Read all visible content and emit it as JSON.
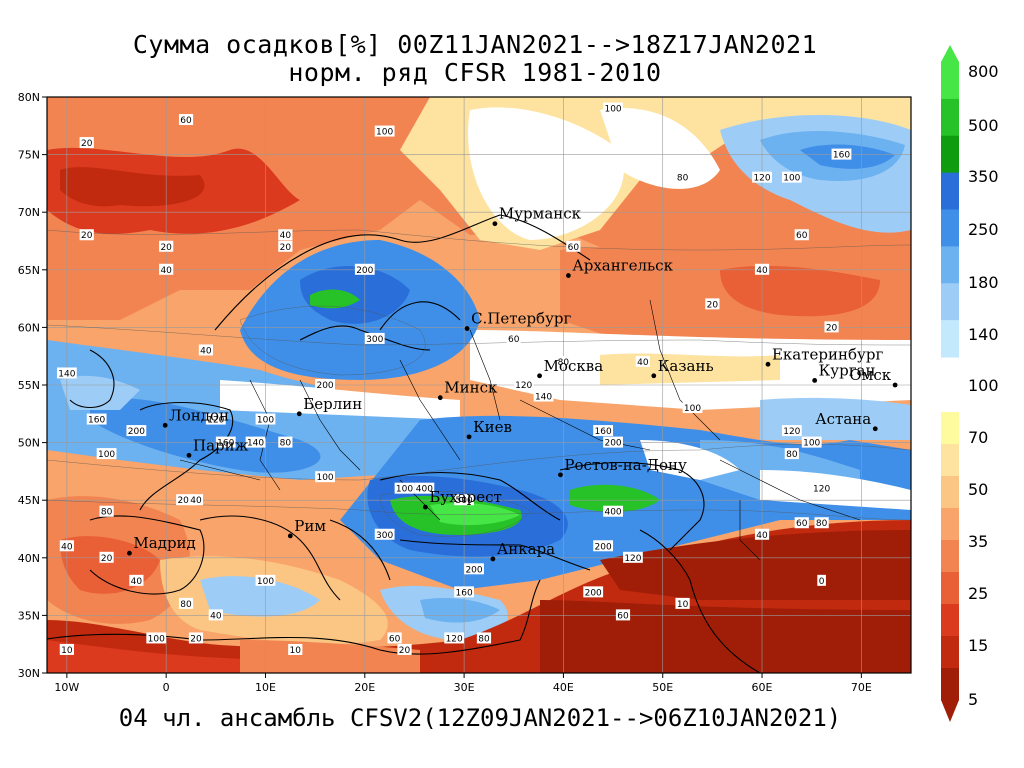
{
  "title_line1": "Сумма осадков[%] 00Z11JAN2021-->18Z17JAN2021",
  "title_line2": "норм. ряд CFSR 1981-2010",
  "caption": "04 чл. ансамбль CFSV2(12Z09JAN2021-->06Z10JAN2021)",
  "lon_ticks": [
    "10W",
    "0",
    "10E",
    "20E",
    "30E",
    "40E",
    "50E",
    "60E",
    "70E"
  ],
  "lat_ticks": [
    "80N",
    "75N",
    "70N",
    "65N",
    "60N",
    "55N",
    "50N",
    "45N",
    "40N",
    "35N",
    "30N"
  ],
  "map_extent": {
    "lon": [
      -12,
      75
    ],
    "lat": [
      30,
      80
    ]
  },
  "cities": [
    {
      "name": "Мурманск",
      "lon": 33.1,
      "lat": 69.0
    },
    {
      "name": "Архангельск",
      "lon": 40.5,
      "lat": 64.5
    },
    {
      "name": "С.Петербург",
      "lon": 30.3,
      "lat": 59.9
    },
    {
      "name": "Москва",
      "lon": 37.6,
      "lat": 55.8
    },
    {
      "name": "Казань",
      "lon": 49.1,
      "lat": 55.8
    },
    {
      "name": "Екатеринбург",
      "lon": 60.6,
      "lat": 56.8
    },
    {
      "name": "Курган",
      "lon": 65.3,
      "lat": 55.4
    },
    {
      "name": "Омск",
      "lon": 73.4,
      "lat": 55.0
    },
    {
      "name": "Астана",
      "lon": 71.4,
      "lat": 51.2
    },
    {
      "name": "Минск",
      "lon": 27.6,
      "lat": 53.9
    },
    {
      "name": "Киев",
      "lon": 30.5,
      "lat": 50.5
    },
    {
      "name": "Берлин",
      "lon": 13.4,
      "lat": 52.5
    },
    {
      "name": "Лондон",
      "lon": -0.1,
      "lat": 51.5
    },
    {
      "name": "Париж",
      "lon": 2.3,
      "lat": 48.9
    },
    {
      "name": "Рим",
      "lon": 12.5,
      "lat": 41.9
    },
    {
      "name": "Мадрид",
      "lon": -3.7,
      "lat": 40.4
    },
    {
      "name": "Бухарест",
      "lon": 26.1,
      "lat": 44.4
    },
    {
      "name": "Анкара",
      "lon": 32.9,
      "lat": 39.9
    },
    {
      "name": "Ростов-на-Дону",
      "lon": 39.7,
      "lat": 47.2
    }
  ],
  "contour_labels": [
    {
      "text": "20",
      "lon": -8,
      "lat": 76
    },
    {
      "text": "60",
      "lon": 2,
      "lat": 78
    },
    {
      "text": "100",
      "lon": 22,
      "lat": 77
    },
    {
      "text": "100",
      "lon": 45,
      "lat": 79
    },
    {
      "text": "80",
      "lon": 52,
      "lat": 73
    },
    {
      "text": "160",
      "lon": 68,
      "lat": 75
    },
    {
      "text": "120",
      "lon": 60,
      "lat": 73
    },
    {
      "text": "100",
      "lon": 63,
      "lat": 73
    },
    {
      "text": "60",
      "lon": 64,
      "lat": 68
    },
    {
      "text": "20",
      "lon": -8,
      "lat": 68
    },
    {
      "text": "20",
      "lon": 0,
      "lat": 67
    },
    {
      "text": "40",
      "lon": 0,
      "lat": 65
    },
    {
      "text": "20",
      "lon": 12,
      "lat": 67
    },
    {
      "text": "40",
      "lon": 12,
      "lat": 68
    },
    {
      "text": "200",
      "lon": 20,
      "lat": 65
    },
    {
      "text": "40",
      "lon": 60,
      "lat": 65
    },
    {
      "text": "60",
      "lon": 41,
      "lat": 67
    },
    {
      "text": "20",
      "lon": 55,
      "lat": 62
    },
    {
      "text": "20",
      "lon": 67,
      "lat": 60
    },
    {
      "text": "300",
      "lon": 21,
      "lat": 59
    },
    {
      "text": "60",
      "lon": 35,
      "lat": 59
    },
    {
      "text": "40",
      "lon": 4,
      "lat": 58
    },
    {
      "text": "140",
      "lon": -10,
      "lat": 56
    },
    {
      "text": "80",
      "lon": 40,
      "lat": 57
    },
    {
      "text": "40",
      "lon": 48,
      "lat": 57
    },
    {
      "text": "120",
      "lon": 36,
      "lat": 55
    },
    {
      "text": "140",
      "lon": 38,
      "lat": 54
    },
    {
      "text": "200",
      "lon": 16,
      "lat": 55
    },
    {
      "text": "160",
      "lon": -7,
      "lat": 52
    },
    {
      "text": "100",
      "lon": 10,
      "lat": 52
    },
    {
      "text": "120",
      "lon": 5,
      "lat": 52
    },
    {
      "text": "200",
      "lon": -3,
      "lat": 51
    },
    {
      "text": "100",
      "lon": -6,
      "lat": 49
    },
    {
      "text": "160",
      "lon": 6,
      "lat": 50
    },
    {
      "text": "140",
      "lon": 9,
      "lat": 50
    },
    {
      "text": "80",
      "lon": 12,
      "lat": 50
    },
    {
      "text": "160",
      "lon": 44,
      "lat": 51
    },
    {
      "text": "200",
      "lon": 45,
      "lat": 50
    },
    {
      "text": "100",
      "lon": 53,
      "lat": 53
    },
    {
      "text": "100",
      "lon": 65,
      "lat": 50
    },
    {
      "text": "120",
      "lon": 63,
      "lat": 51
    },
    {
      "text": "80",
      "lon": 63,
      "lat": 49
    },
    {
      "text": "200",
      "lon": 2,
      "lat": 45
    },
    {
      "text": "40",
      "lon": 3,
      "lat": 45
    },
    {
      "text": "80",
      "lon": -6,
      "lat": 44
    },
    {
      "text": "40",
      "lon": -10,
      "lat": 41
    },
    {
      "text": "20",
      "lon": -6,
      "lat": 40
    },
    {
      "text": "100",
      "lon": 16,
      "lat": 47
    },
    {
      "text": "100",
      "lon": 24,
      "lat": 46
    },
    {
      "text": "400",
      "lon": 26,
      "lat": 46
    },
    {
      "text": "500",
      "lon": 30,
      "lat": 45
    },
    {
      "text": "300",
      "lon": 22,
      "lat": 42
    },
    {
      "text": "400",
      "lon": 45,
      "lat": 44
    },
    {
      "text": "200",
      "lon": 44,
      "lat": 41
    },
    {
      "text": "120",
      "lon": 47,
      "lat": 40
    },
    {
      "text": "200",
      "lon": 31,
      "lat": 39
    },
    {
      "text": "120",
      "lon": 66,
      "lat": 46
    },
    {
      "text": "60",
      "lon": 64,
      "lat": 43
    },
    {
      "text": "80",
      "lon": 66,
      "lat": 43
    },
    {
      "text": "40",
      "lon": 60,
      "lat": 42
    },
    {
      "text": "0",
      "lon": 66,
      "lat": 38
    },
    {
      "text": "10",
      "lon": 52,
      "lat": 36
    },
    {
      "text": "40",
      "lon": -3,
      "lat": 38
    },
    {
      "text": "80",
      "lon": 2,
      "lat": 36
    },
    {
      "text": "40",
      "lon": 5,
      "lat": 35
    },
    {
      "text": "100",
      "lon": 10,
      "lat": 38
    },
    {
      "text": "120",
      "lon": 29,
      "lat": 33
    },
    {
      "text": "80",
      "lon": 32,
      "lat": 33
    },
    {
      "text": "60",
      "lon": 23,
      "lat": 33
    },
    {
      "text": "20",
      "lon": 24,
      "lat": 32
    },
    {
      "text": "100",
      "lon": -1,
      "lat": 33
    },
    {
      "text": "20",
      "lon": 3,
      "lat": 33
    },
    {
      "text": "10",
      "lon": -10,
      "lat": 32
    },
    {
      "text": "10",
      "lon": 13,
      "lat": 32
    },
    {
      "text": "160",
      "lon": 30,
      "lat": 37
    },
    {
      "text": "200",
      "lon": 43,
      "lat": 37
    },
    {
      "text": "60",
      "lon": 46,
      "lat": 35
    }
  ],
  "legend": {
    "labels": [
      "800",
      "500",
      "350",
      "250",
      "180",
      "140",
      "100",
      "70",
      "50",
      "35",
      "25",
      "15",
      "5"
    ],
    "colors_high": [
      "#47e647",
      "#27c227",
      "#0f9c0f",
      "#2a6fd9",
      "#3f8fe8",
      "#6cb1f0",
      "#9dcdf6",
      "#c3eafc"
    ],
    "colors_low": [
      "#fefa9e",
      "#fde2a0",
      "#fbc583",
      "#f8a46a",
      "#f28451",
      "#e95f36",
      "#dc3a1e",
      "#c22a10",
      "#a01e08"
    ]
  },
  "colors": {
    "deep_red": "#c22a10",
    "red": "#dc3a1e",
    "orange": "#f28451",
    "light_orange": "#fbc583",
    "cream": "#fde2a0",
    "pale_yellow": "#fefa9e",
    "white": "#ffffff",
    "pale_blue": "#c3eafc",
    "light_blue": "#9dcdf6",
    "mid_blue": "#6cb1f0",
    "blue": "#3f8fe8",
    "strong_blue": "#2a6fd9",
    "green": "#27c227",
    "light_green": "#47e647"
  }
}
